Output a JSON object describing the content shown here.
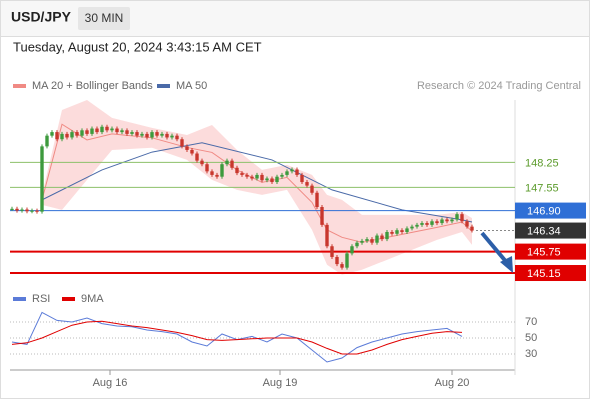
{
  "chart_data": {
    "type": "candlestick",
    "title": "USD/JPY",
    "timeframe": "30 MIN",
    "subtitle": "Tuesday, August 20, 2024 3:43:15 AM CET",
    "credit": "Research © 2024 Trading Central",
    "up_color": "#3d9a3d",
    "down_color": "#c8372d",
    "close": [
      146.95,
      146.9,
      146.93,
      146.88,
      146.9,
      146.87,
      148.7,
      149.0,
      149.1,
      148.9,
      149.05,
      148.95,
      149.1,
      149.0,
      149.15,
      149.05,
      149.2,
      149.1,
      149.25,
      149.15,
      149.2,
      149.1,
      149.15,
      149.05,
      149.1,
      149.0,
      149.05,
      148.95,
      149.1,
      149.0,
      149.05,
      148.95,
      149.0,
      148.9,
      148.7,
      148.6,
      148.5,
      148.3,
      148.2,
      148.0,
      147.9,
      147.85,
      148.2,
      148.3,
      148.1,
      147.95,
      147.9,
      147.85,
      147.8,
      147.9,
      147.75,
      147.8,
      147.7,
      147.85,
      147.9,
      148.0,
      148.05,
      147.9,
      147.7,
      147.6,
      147.4,
      147.0,
      146.5,
      145.9,
      145.6,
      145.4,
      145.3,
      145.7,
      145.9,
      146.0,
      146.05,
      146.1,
      146.0,
      146.2,
      146.1,
      146.3,
      146.25,
      146.35,
      146.3,
      146.4,
      146.45,
      146.5,
      146.55,
      146.5,
      146.6,
      146.55,
      146.65,
      146.6,
      146.65,
      146.8,
      146.6,
      146.45,
      146.34
    ],
    "overlays": [
      {
        "name": "MA 20 + Bollinger Bands",
        "color": "#f08a84",
        "band_color": "#fbd3d3",
        "x": [
          6,
          10,
          15,
          20,
          28,
          35,
          40,
          45,
          50,
          55,
          60,
          63,
          66,
          70,
          75,
          80,
          85,
          90,
          92
        ],
        "values": [
          147.2,
          149.32,
          148.88,
          149.05,
          148.94,
          148.67,
          148.53,
          148.04,
          147.69,
          147.83,
          147.13,
          146.36,
          146.15,
          146.01,
          146.15,
          146.29,
          146.43,
          146.58,
          146.32
        ],
        "upper": [
          147.34,
          149.72,
          150.0,
          149.5,
          149.22,
          149.02,
          149.3,
          148.6,
          148.04,
          148.18,
          147.9,
          147.34,
          147.2,
          146.78,
          146.78,
          146.78,
          146.78,
          146.86,
          146.69
        ],
        "lower": [
          147.06,
          146.92,
          147.76,
          148.6,
          148.66,
          148.32,
          147.76,
          147.48,
          147.34,
          147.48,
          146.36,
          145.38,
          145.1,
          145.24,
          145.52,
          145.8,
          146.08,
          146.3,
          145.94
        ]
      },
      {
        "name": "MA 50",
        "color": "#4a6aa8",
        "x": [
          6,
          18,
          28,
          38,
          52,
          64,
          78,
          90,
          92
        ],
        "values": [
          147.2,
          148.04,
          148.54,
          148.8,
          148.32,
          147.48,
          146.92,
          146.64,
          146.58
        ]
      }
    ],
    "levels": [
      {
        "value": 148.25,
        "color": "#8dc06a",
        "text_color": "#5a9a2a"
      },
      {
        "value": 147.55,
        "color": "#8dc06a",
        "text_color": "#5a9a2a"
      },
      {
        "value": {
          "value": 146.9,
          "label": "146.90"
        },
        "color": "#2f6fd6",
        "box": true
      },
      {
        "value": 146.34,
        "color": "#888888",
        "box": true,
        "box_color": "#333333",
        "dash": true
      },
      {
        "value": 145.75,
        "color": "#e00000",
        "box": true,
        "width": 2
      },
      {
        "value": 145.15,
        "color": "#e00000",
        "box": true,
        "width": 2
      }
    ],
    "ylim": [
      144.87,
      150.0
    ],
    "xlim": [
      -0.4,
      100.6
    ],
    "xticks": [
      {
        "value": 19.6,
        "label": "Aug 16"
      },
      {
        "value": 53.6,
        "label": "Aug 19"
      },
      {
        "value": 88,
        "label": "Aug 20"
      }
    ],
    "rsi": {
      "type": "line",
      "ylim": [
        10,
        90
      ],
      "yticks": [
        70,
        50,
        30
      ],
      "series": [
        {
          "name": "RSI",
          "color": "#5b7bd8",
          "x": [
            0,
            3,
            6,
            9,
            12,
            15,
            18,
            21,
            24,
            27,
            30,
            33,
            36,
            39,
            42,
            45,
            48,
            51,
            54,
            57,
            60,
            63,
            66,
            69,
            72,
            75,
            78,
            81,
            84,
            87,
            90
          ],
          "values": [
            45,
            42,
            82,
            72,
            70,
            75,
            68,
            65,
            64,
            60,
            58,
            55,
            45,
            40,
            55,
            48,
            52,
            45,
            55,
            50,
            35,
            20,
            25,
            38,
            45,
            50,
            55,
            58,
            60,
            62,
            52
          ]
        },
        {
          "name": "9MA",
          "color": "#e00000",
          "x": [
            0,
            3,
            6,
            9,
            12,
            15,
            18,
            21,
            24,
            27,
            30,
            33,
            36,
            39,
            42,
            45,
            48,
            51,
            54,
            57,
            60,
            63,
            66,
            69,
            72,
            75,
            78,
            81,
            84,
            87,
            90
          ],
          "values": [
            42,
            44,
            50,
            58,
            66,
            70,
            71,
            68,
            65,
            63,
            60,
            57,
            53,
            48,
            47,
            48,
            49,
            50,
            50,
            50,
            45,
            37,
            30,
            30,
            35,
            42,
            48,
            52,
            56,
            58,
            57
          ]
        }
      ]
    }
  }
}
